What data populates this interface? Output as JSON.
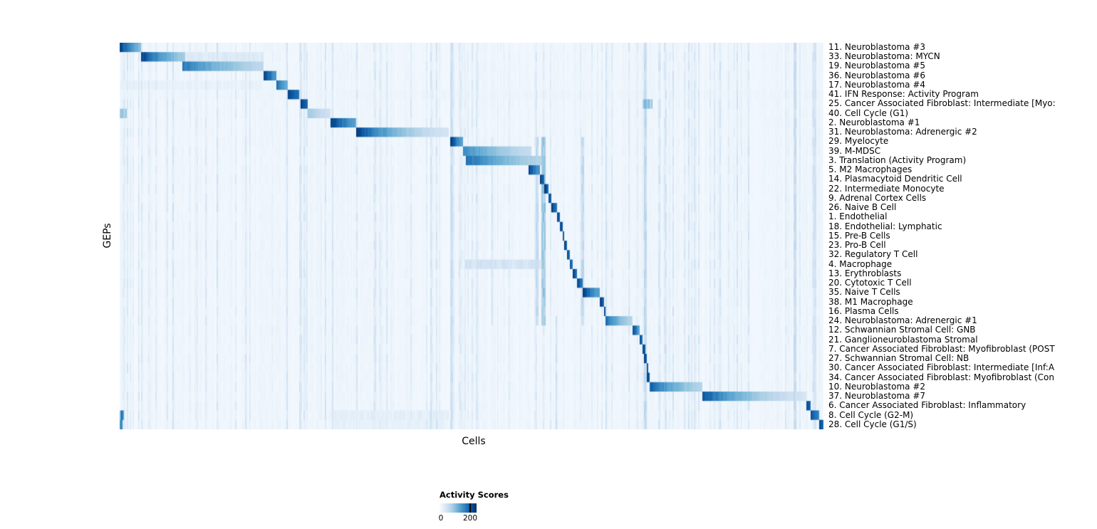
{
  "chart_data": {
    "type": "heatmap",
    "title": "",
    "xlabel": "Cells",
    "ylabel": "GEPs",
    "legend": {
      "title": "Activity Scores",
      "min": 0,
      "max": 200
    },
    "colormap": [
      "#f7fbff",
      "#deebf7",
      "#c6dbef",
      "#9ecae1",
      "#6baed6",
      "#4292c6",
      "#2171b5",
      "#08519c",
      "#08306b"
    ],
    "noise": {
      "seed": 42,
      "column_prob": 0.28,
      "column_max": 0.2,
      "base": 0.05,
      "floor": 0.025
    },
    "rows": [
      {
        "label": "11. Neuroblastoma #3",
        "block": [
          0.0,
          0.03
        ],
        "peak": 1.0,
        "end": 0.45
      },
      {
        "label": "33. Neuroblastoma: MYCN",
        "block": [
          0.03,
          0.094
        ],
        "peak": 1.0,
        "end": 0.35,
        "extras": [
          [
            0.094,
            0.205,
            0.16
          ]
        ]
      },
      {
        "label": "19. Neuroblastoma #5",
        "block": [
          0.09,
          0.205
        ],
        "peak": 0.75,
        "end": 0.28
      },
      {
        "label": "36. Neuroblastoma #6",
        "block": [
          0.205,
          0.223
        ],
        "peak": 1.0,
        "end": 0.6
      },
      {
        "label": "17. Neuroblastoma #4",
        "block": [
          0.223,
          0.238
        ],
        "peak": 0.85,
        "end": 0.5,
        "extras": [
          [
            0.0,
            0.2,
            0.1
          ]
        ]
      },
      {
        "label": "41. IFN Response: Activity Program",
        "block": [
          0.238,
          0.256
        ],
        "peak": 1.0,
        "end": 0.75,
        "extras": [
          [
            0.0,
            1.0,
            0.06
          ]
        ]
      },
      {
        "label": "25. Cancer Associated Fibroblast: Intermediate [Myo:",
        "block": [
          0.258,
          0.267
        ],
        "peak": 1.0,
        "end": 0.85,
        "extras": [
          [
            0.742,
            0.757,
            0.5
          ]
        ]
      },
      {
        "label": "40. Cell Cycle (G1)",
        "block": [
          0.267,
          0.3
        ],
        "peak": 0.4,
        "end": 0.2,
        "extras": [
          [
            0.0,
            0.01,
            0.45
          ]
        ]
      },
      {
        "label": "2. Neuroblastoma #1",
        "block": [
          0.3,
          0.337
        ],
        "peak": 1.0,
        "end": 0.55
      },
      {
        "label": "31. Neuroblastoma: Adrenergic #2",
        "block": [
          0.337,
          0.468
        ],
        "peak": 1.0,
        "end": 0.18
      },
      {
        "label": "29. Myelocyte",
        "block": [
          0.47,
          0.488
        ],
        "peak": 1.0,
        "end": 0.55
      },
      {
        "label": "39. M-MDSC",
        "block": [
          0.488,
          0.585
        ],
        "peak": 0.7,
        "end": 0.25
      },
      {
        "label": "3. Translation (Activity Program)",
        "block": [
          0.492,
          0.6
        ],
        "peak": 0.8,
        "end": 0.3
      },
      {
        "label": "5. M2 Macrophages",
        "block": [
          0.58,
          0.598
        ],
        "peak": 1.0,
        "end": 0.6
      },
      {
        "label": "14. Plasmacytoid Dendritic Cell",
        "block": [
          0.598,
          0.604
        ],
        "peak": 1.0,
        "end": 0.8
      },
      {
        "label": "22. Intermediate Monocyte",
        "block": [
          0.604,
          0.609
        ],
        "peak": 1.0,
        "end": 0.8
      },
      {
        "label": "9. Adrenal Cortex Cells",
        "block": [
          0.609,
          0.614
        ],
        "peak": 1.0,
        "end": 0.8
      },
      {
        "label": "26. Naive B Cell",
        "block": [
          0.614,
          0.622
        ],
        "peak": 1.0,
        "end": 0.7
      },
      {
        "label": "1. Endothelial",
        "block": [
          0.622,
          0.626
        ],
        "peak": 1.0,
        "end": 0.8
      },
      {
        "label": "18. Endothelial: Lymphatic",
        "block": [
          0.626,
          0.629
        ],
        "peak": 1.0,
        "end": 0.85
      },
      {
        "label": "15. Pre-B Cells",
        "block": [
          0.629,
          0.632
        ],
        "peak": 1.0,
        "end": 0.85
      },
      {
        "label": "23. Pro-B Cell",
        "block": [
          0.632,
          0.635
        ],
        "peak": 1.0,
        "end": 0.85
      },
      {
        "label": "32. Regulatory T Cell",
        "block": [
          0.635,
          0.639
        ],
        "peak": 1.0,
        "end": 0.8
      },
      {
        "label": "4. Macrophage",
        "block": [
          0.639,
          0.644
        ],
        "peak": 1.0,
        "end": 0.75,
        "extras": [
          [
            0.49,
            0.6,
            0.22
          ]
        ]
      },
      {
        "label": "13. Erythroblasts",
        "block": [
          0.644,
          0.649
        ],
        "peak": 1.0,
        "end": 0.8
      },
      {
        "label": "20. Cytotoxic T Cell",
        "block": [
          0.649,
          0.658
        ],
        "peak": 1.0,
        "end": 0.7
      },
      {
        "label": "35. Naive T Cells",
        "block": [
          0.658,
          0.683
        ],
        "peak": 1.0,
        "end": 0.55
      },
      {
        "label": "38. M1 Macrophage",
        "block": [
          0.683,
          0.688
        ],
        "peak": 1.0,
        "end": 0.8
      },
      {
        "label": "16. Plasma Cells",
        "block": [
          0.688,
          0.691
        ],
        "peak": 1.0,
        "end": 0.85
      },
      {
        "label": "24. Neuroblastoma: Adrenergic #1",
        "block": [
          0.691,
          0.728
        ],
        "peak": 0.8,
        "end": 0.3
      },
      {
        "label": "12. Schwannian Stromal Cell: GNB",
        "block": [
          0.728,
          0.738
        ],
        "peak": 1.0,
        "end": 0.6
      },
      {
        "label": "21. Ganglioneuroblastoma Stromal",
        "block": [
          0.738,
          0.742
        ],
        "peak": 1.0,
        "end": 0.8
      },
      {
        "label": "7. Cancer Associated Fibroblast: Myofibroblast (POST",
        "block": [
          0.742,
          0.746
        ],
        "peak": 1.0,
        "end": 0.85
      },
      {
        "label": "27. Schwannian Stromal Cell: NB",
        "block": [
          0.745,
          0.749
        ],
        "peak": 1.0,
        "end": 0.85
      },
      {
        "label": "30. Cancer Associated Fibroblast: Intermediate [Inf:A",
        "block": [
          0.748,
          0.752
        ],
        "peak": 1.0,
        "end": 0.85
      },
      {
        "label": "34. Cancer Associated Fibroblast: Myofibroblast (Con",
        "block": [
          0.75,
          0.754
        ],
        "peak": 1.0,
        "end": 0.85
      },
      {
        "label": "10. Neuroblastoma #2",
        "block": [
          0.754,
          0.828
        ],
        "peak": 0.85,
        "end": 0.3
      },
      {
        "label": "37. Neuroblastoma #7",
        "block": [
          0.828,
          0.975
        ],
        "peak": 0.9,
        "end": 0.18
      },
      {
        "label": "6. Cancer Associated Fibroblast: Inflammatory",
        "block": [
          0.975,
          0.981
        ],
        "peak": 1.0,
        "end": 0.8
      },
      {
        "label": "8. Cell Cycle (G2-M)",
        "block": [
          0.981,
          0.994
        ],
        "peak": 1.0,
        "end": 0.7,
        "extras": [
          [
            0.0,
            0.007,
            0.85
          ],
          [
            0.3,
            0.468,
            0.12
          ]
        ]
      },
      {
        "label": "28. Cell Cycle (G1/S)",
        "block": [
          0.994,
          1.0
        ],
        "peak": 1.0,
        "end": 0.8,
        "extras": [
          [
            0.0,
            0.005,
            0.75
          ],
          [
            0.3,
            0.468,
            0.1
          ]
        ]
      }
    ],
    "streaks": [
      {
        "x": 0.6,
        "w": 0.005,
        "v": 0.45,
        "rows": [
          10,
          30
        ]
      },
      {
        "x": 0.592,
        "w": 0.003,
        "v": 0.3,
        "rows": [
          10,
          30
        ]
      },
      {
        "x": 0.656,
        "w": 0.003,
        "v": 0.3,
        "rows": [
          10,
          30
        ]
      },
      {
        "x": 0.528,
        "w": 0.003,
        "v": 0.2,
        "rows": [
          10,
          30
        ]
      },
      {
        "x": 0.744,
        "w": 0.004,
        "v": 0.3,
        "rows": [
          0,
          41
        ]
      },
      {
        "x": 0.47,
        "w": 0.003,
        "v": 0.25,
        "rows": [
          0,
          41
        ]
      },
      {
        "x": 0.958,
        "w": 0.003,
        "v": 0.28,
        "rows": [
          0,
          41
        ]
      },
      {
        "x": 0.986,
        "w": 0.003,
        "v": 0.22,
        "rows": [
          0,
          41
        ]
      },
      {
        "x": 0.236,
        "w": 0.002,
        "v": 0.22,
        "rows": [
          0,
          41
        ]
      },
      {
        "x": 0.302,
        "w": 0.002,
        "v": 0.2,
        "rows": [
          0,
          41
        ]
      },
      {
        "x": 0.69,
        "w": 0.002,
        "v": 0.22,
        "rows": [
          0,
          41
        ]
      },
      {
        "x": 0.62,
        "w": 0.002,
        "v": 0.25,
        "rows": [
          29,
          41
        ]
      }
    ]
  }
}
